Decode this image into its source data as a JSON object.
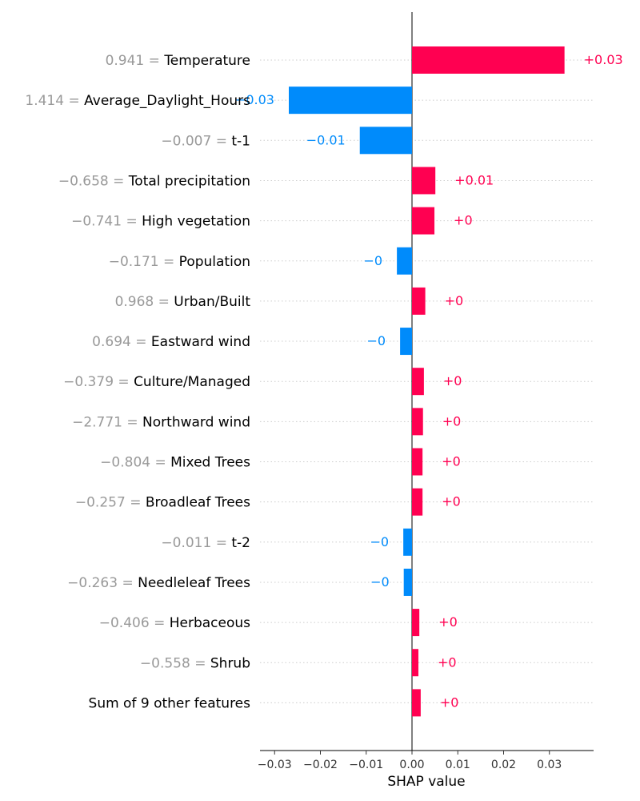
{
  "chart_data": {
    "type": "bar",
    "orientation": "horizontal",
    "xlabel": "SHAP value",
    "xlim": [
      -0.033,
      0.04
    ],
    "xticks": [
      "−0.03",
      "−0.02",
      "−0.01",
      "0.00",
      "0.01",
      "0.02",
      "0.03"
    ],
    "xtick_values": [
      -0.03,
      -0.02,
      -0.01,
      0.0,
      0.01,
      0.02,
      0.03
    ],
    "grid": "dotted horizontal row guides",
    "colors": {
      "positive": "#ff0051",
      "negative": "#008bfb",
      "feature_value": "#999999"
    },
    "rows": [
      {
        "feature_value": "0.941",
        "feature": "Temperature",
        "value": 0.0333,
        "label": "+0.03"
      },
      {
        "feature_value": "1.414",
        "feature": "Average_Daylight_Hours",
        "value": -0.0269,
        "label": "−0.03"
      },
      {
        "feature_value": "−0.007",
        "feature": "t-1",
        "value": -0.0114,
        "label": "−0.01"
      },
      {
        "feature_value": "−0.658",
        "feature": "Total precipitation",
        "value": 0.0051,
        "label": "+0.01"
      },
      {
        "feature_value": "−0.741",
        "feature": "High vegetation",
        "value": 0.0049,
        "label": "+0"
      },
      {
        "feature_value": "−0.171",
        "feature": "Population",
        "value": -0.0033,
        "label": "−0"
      },
      {
        "feature_value": "0.968",
        "feature": "Urban/Built",
        "value": 0.0029,
        "label": "+0"
      },
      {
        "feature_value": "0.694",
        "feature": "Eastward wind",
        "value": -0.0026,
        "label": "−0"
      },
      {
        "feature_value": "−0.379",
        "feature": "Culture/Managed",
        "value": 0.0026,
        "label": "+0"
      },
      {
        "feature_value": "−2.771",
        "feature": "Northward wind",
        "value": 0.0024,
        "label": "+0"
      },
      {
        "feature_value": "−0.804",
        "feature": "Mixed Trees",
        "value": 0.0023,
        "label": "+0"
      },
      {
        "feature_value": "−0.257",
        "feature": "Broadleaf Trees",
        "value": 0.0023,
        "label": "+0"
      },
      {
        "feature_value": "−0.011",
        "feature": "t-2",
        "value": -0.0019,
        "label": "−0"
      },
      {
        "feature_value": "−0.263",
        "feature": "Needleleaf Trees",
        "value": -0.0018,
        "label": "−0"
      },
      {
        "feature_value": "−0.406",
        "feature": "Herbaceous",
        "value": 0.0016,
        "label": "+0"
      },
      {
        "feature_value": "−0.558",
        "feature": "Shrub",
        "value": 0.0014,
        "label": "+0"
      },
      {
        "feature_value": "",
        "feature": "Sum of 9 other features",
        "value": 0.0019,
        "label": "+0"
      }
    ]
  }
}
